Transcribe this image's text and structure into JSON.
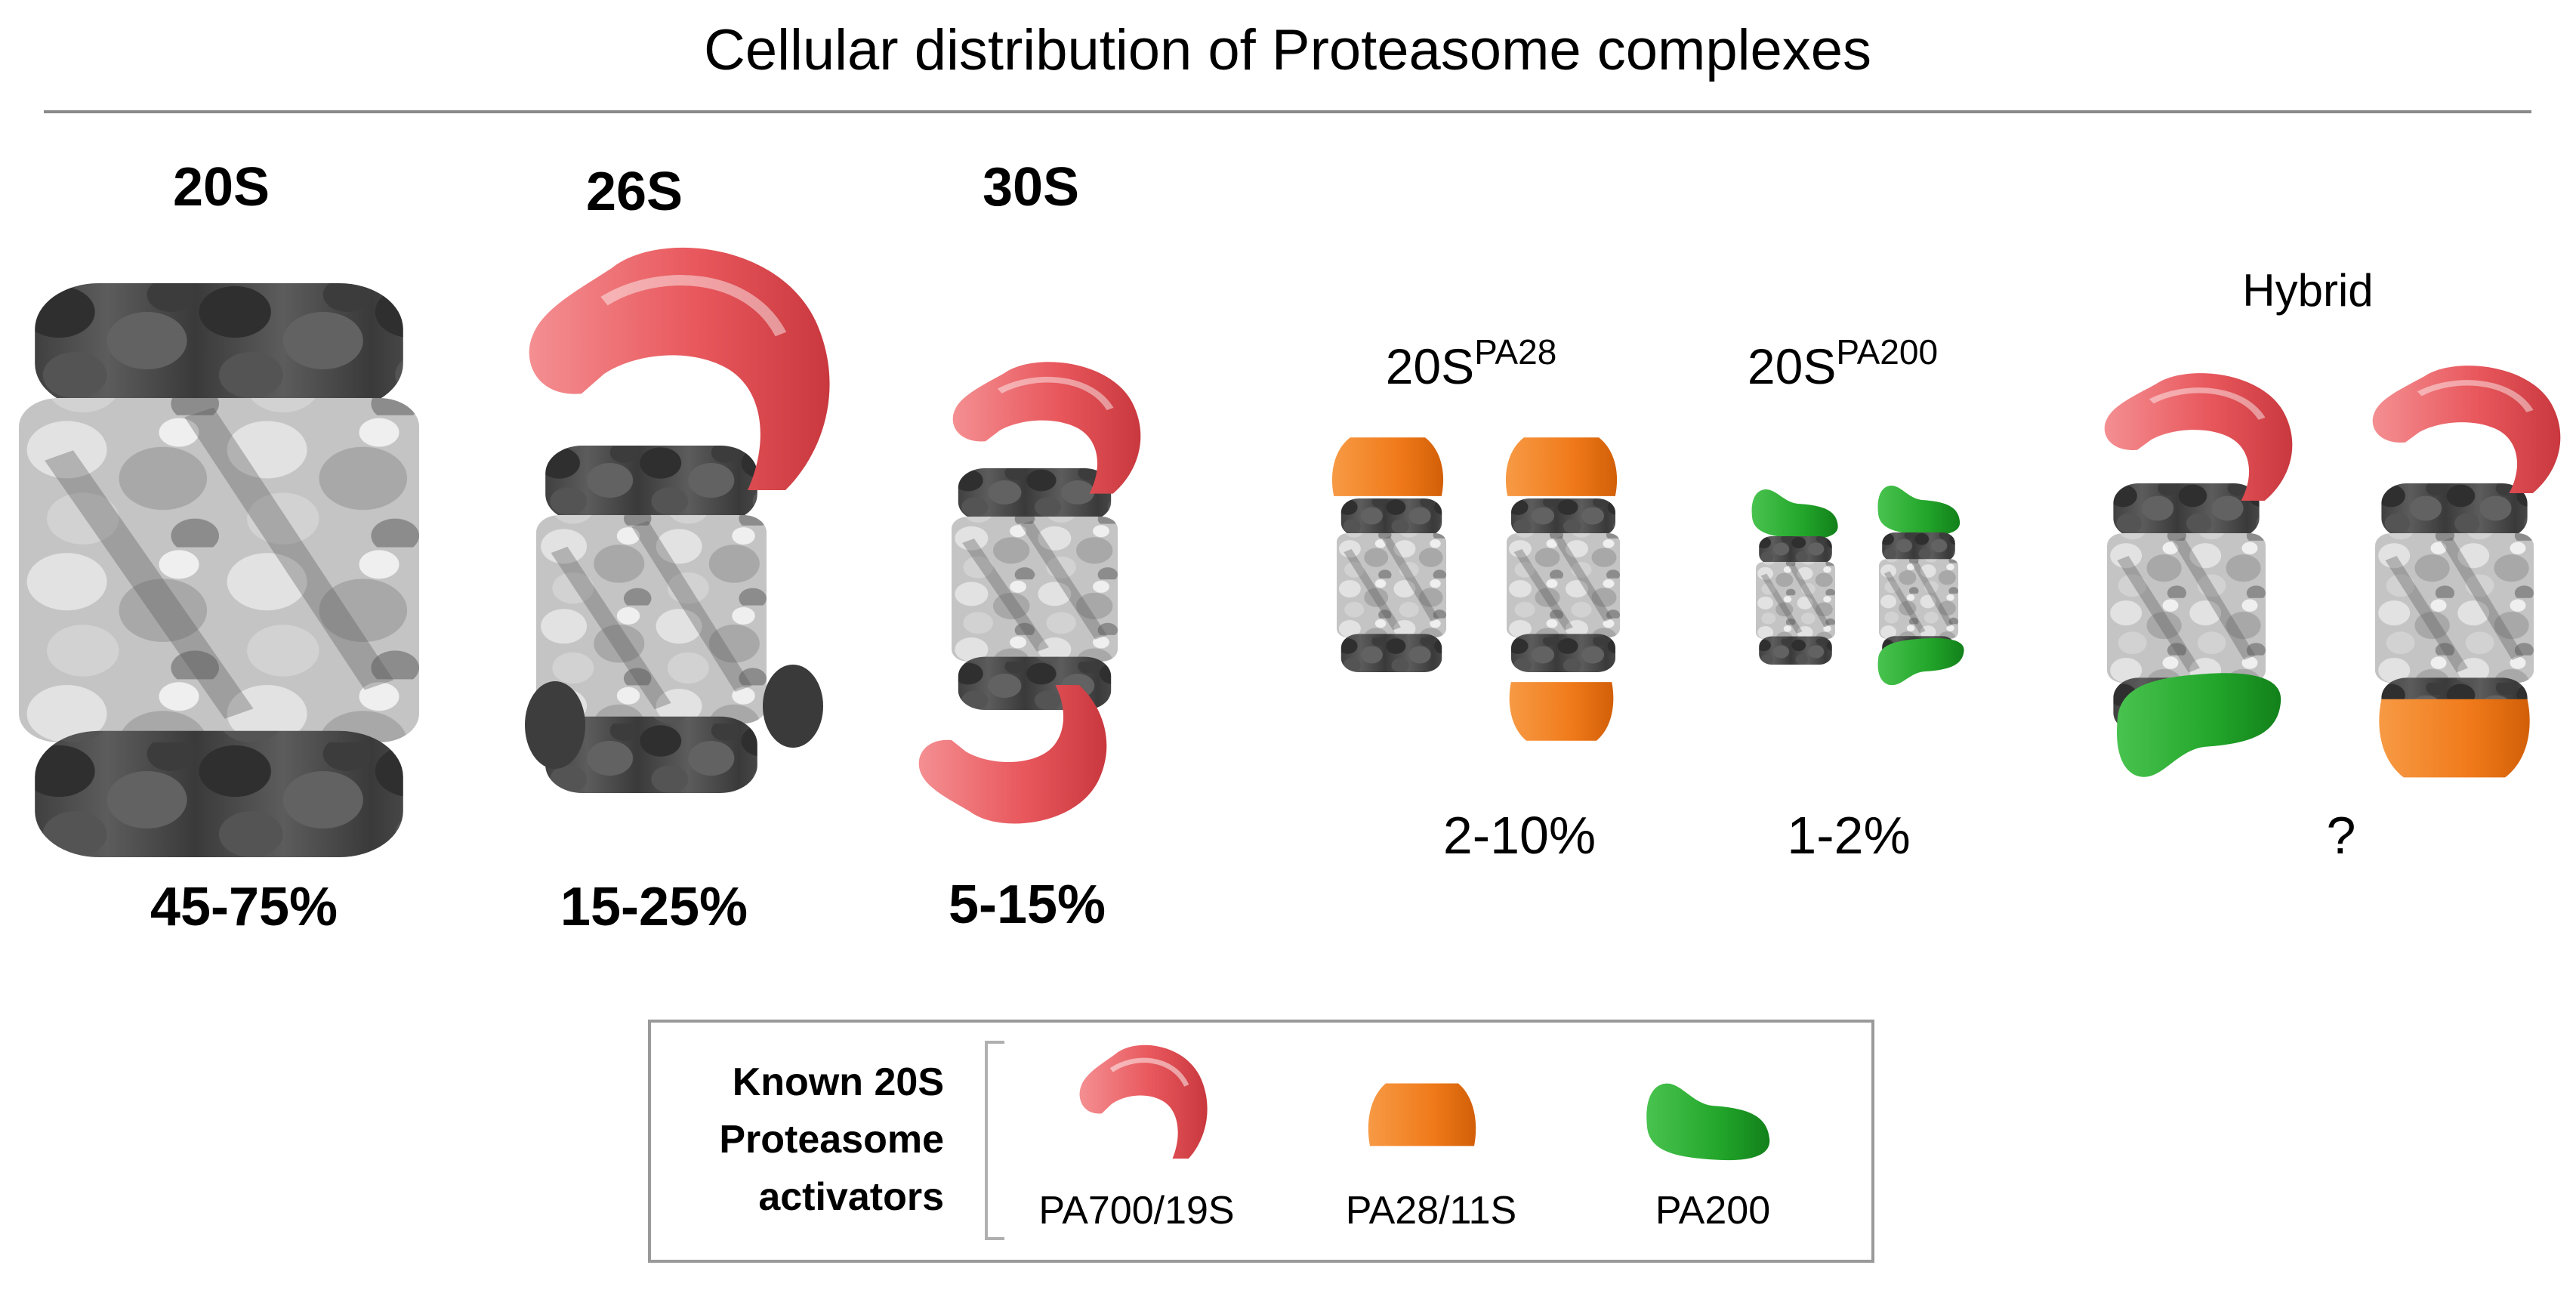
{
  "title": "Cellular distribution of Proteasome complexes",
  "complexes": [
    {
      "name": "20S",
      "percent": "45-75%"
    },
    {
      "name": "26S",
      "percent": "15-25%"
    },
    {
      "name": "30S",
      "percent": "5-15%"
    },
    {
      "name_base": "20S",
      "name_sup": "PA28",
      "percent": "2-10%"
    },
    {
      "name_base": "20S",
      "name_sup": "PA200",
      "percent": "1-2%"
    },
    {
      "name": "Hybrid",
      "percent": "?"
    }
  ],
  "legend": {
    "heading_lines": [
      "Known 20S",
      "Proteasome",
      "activators"
    ],
    "items": [
      {
        "label": "PA700/19S",
        "icon": "pa700-icon",
        "color": "#e85a5f"
      },
      {
        "label": "PA28/11S",
        "icon": "pa28-icon",
        "color": "#f07a1a"
      },
      {
        "label": "PA200",
        "icon": "pa200-icon",
        "color": "#22a52a"
      }
    ]
  },
  "colors": {
    "pa700": "#e85a5f",
    "pa28": "#f07a1a",
    "pa200": "#22a52a",
    "core_dark": "#4a4a4a",
    "core_light": "#c9c9c9"
  }
}
